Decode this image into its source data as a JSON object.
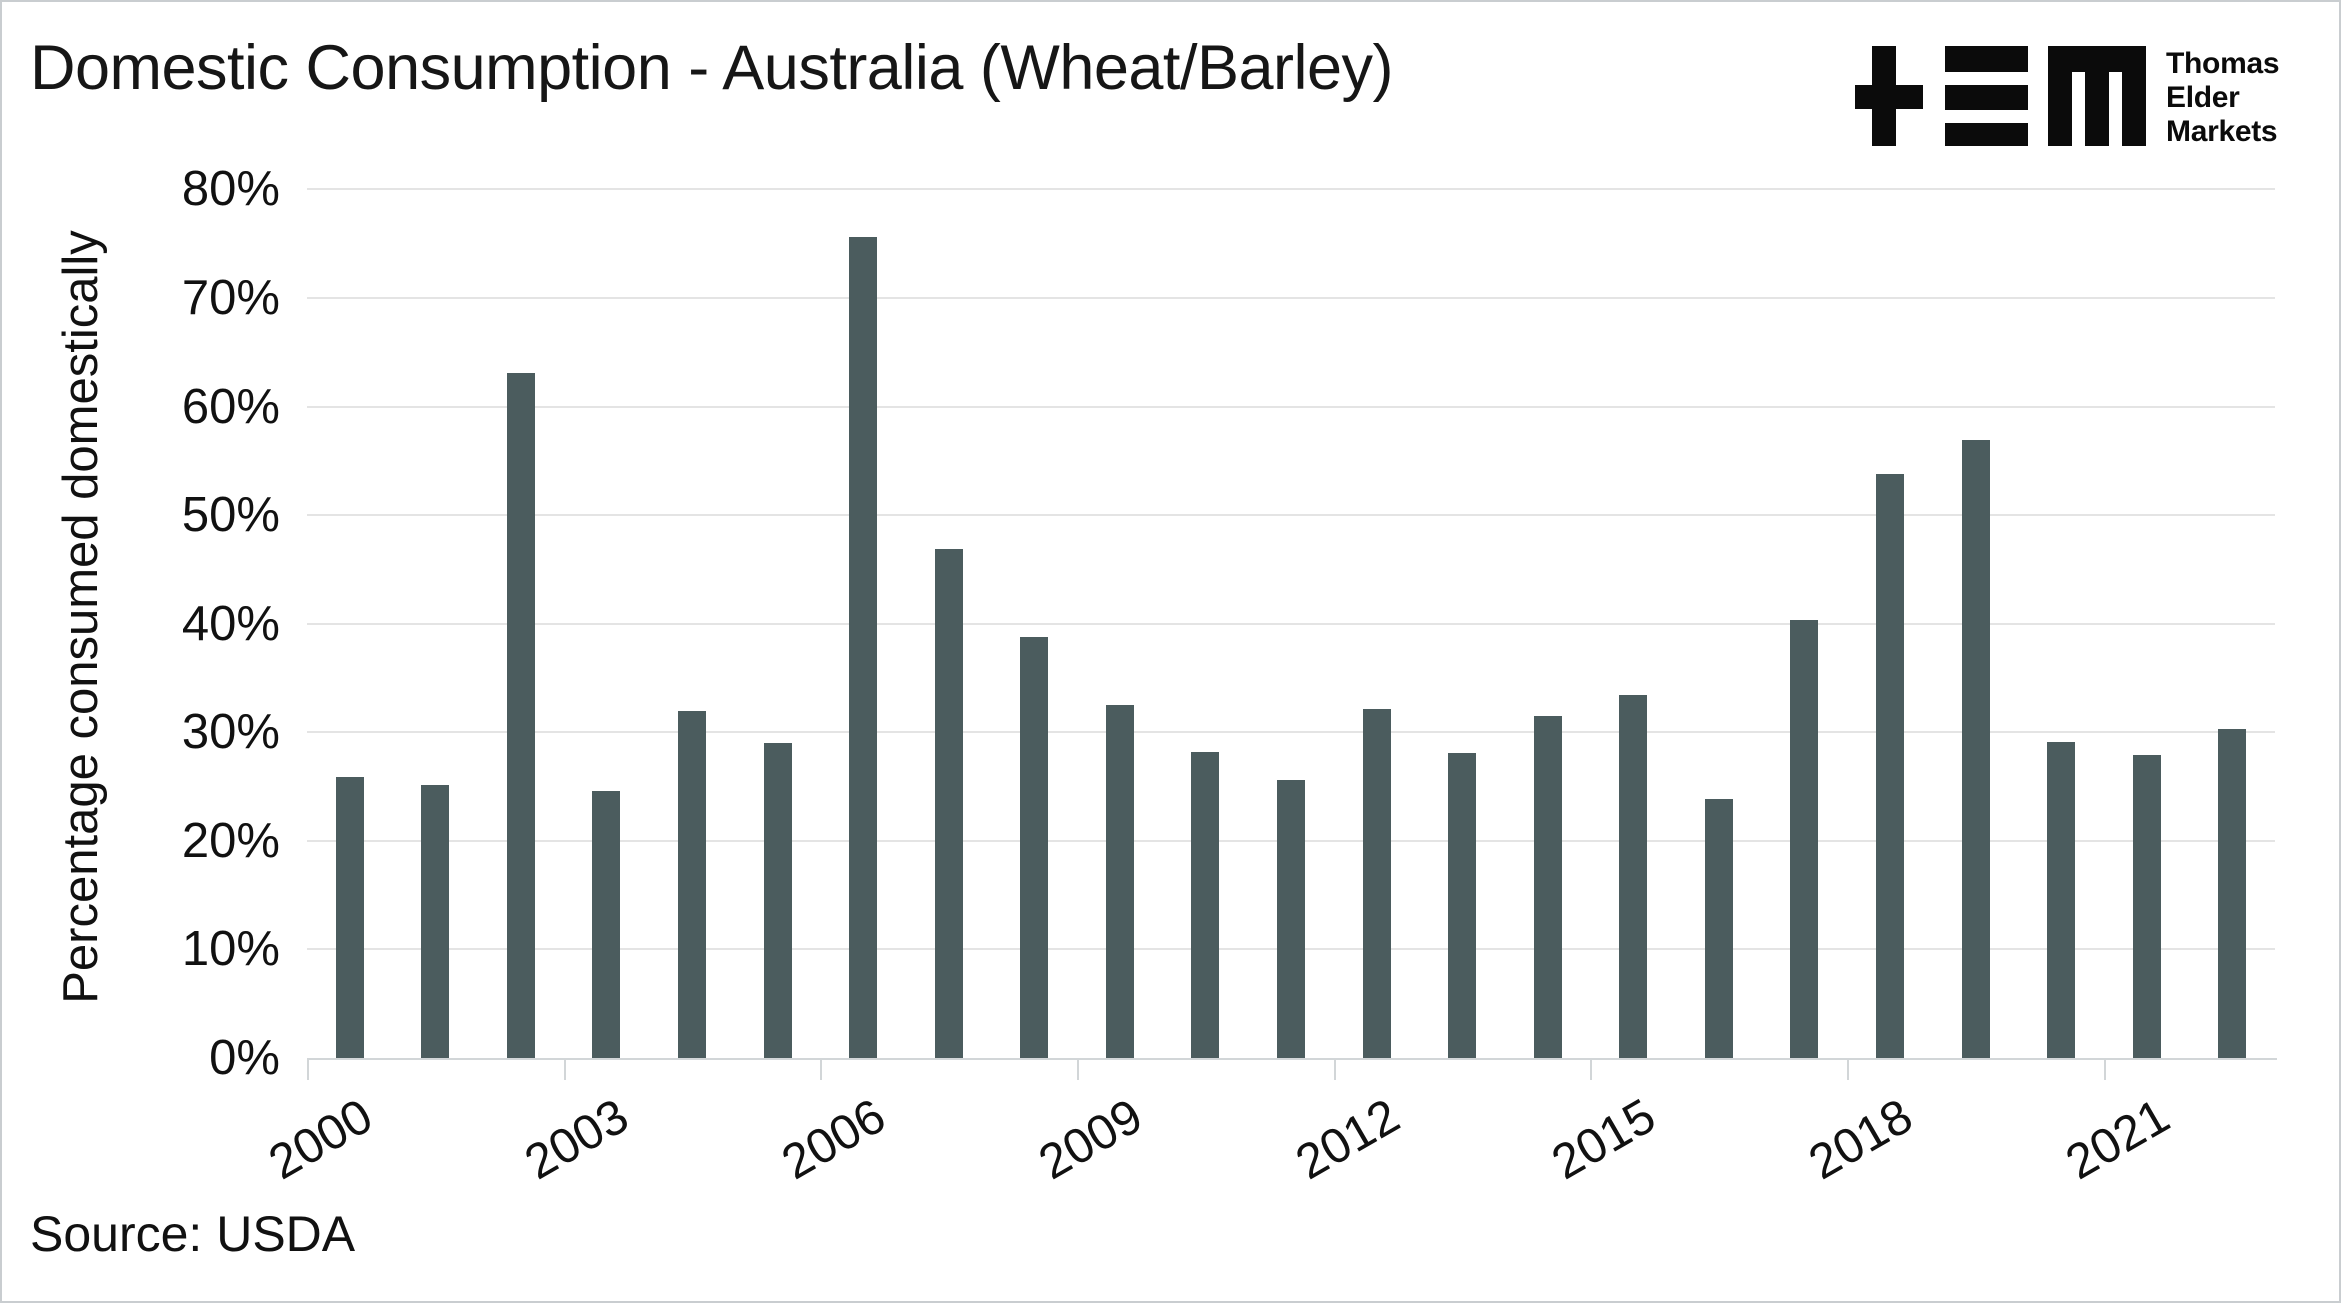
{
  "title": "Domestic Consumption - Australia (Wheat/Barley)",
  "source_note": "Source: USDA",
  "logo": {
    "icon": "tem-logo",
    "lines": [
      "Thomas",
      "Elder",
      "Markets"
    ],
    "color": "#0b0b0b"
  },
  "chart_data": {
    "type": "bar",
    "title": "Domestic Consumption - Australia (Wheat/Barley)",
    "xlabel": "",
    "ylabel": "Percentage consumed domestically",
    "ylim": [
      0,
      80
    ],
    "grid": true,
    "legend_position": "none",
    "bar_color": "#4b5c5e",
    "grid_color": "#e4e4e4",
    "axis_color": "#d2d6d8",
    "categories": [
      2000,
      2001,
      2002,
      2003,
      2004,
      2005,
      2006,
      2007,
      2008,
      2009,
      2010,
      2011,
      2012,
      2013,
      2014,
      2015,
      2016,
      2017,
      2018,
      2019,
      2020,
      2021,
      2022
    ],
    "values": [
      25.9,
      25.1,
      63.1,
      24.6,
      32.0,
      29.0,
      75.6,
      46.9,
      38.8,
      32.5,
      28.2,
      25.6,
      32.1,
      28.1,
      31.5,
      33.4,
      23.9,
      40.3,
      53.8,
      56.9,
      29.1,
      27.9,
      30.3
    ],
    "ytick_values": [
      0,
      10,
      20,
      30,
      40,
      50,
      60,
      70,
      80
    ],
    "ytick_labels": [
      "0%",
      "10%",
      "20%",
      "30%",
      "40%",
      "50%",
      "60%",
      "70%",
      "80%"
    ],
    "xtick_indices": [
      0,
      3,
      6,
      9,
      12,
      15,
      18,
      21
    ],
    "xtick_labels": [
      "2000",
      "2003",
      "2006",
      "2009",
      "2012",
      "2015",
      "2018",
      "2021"
    ]
  }
}
